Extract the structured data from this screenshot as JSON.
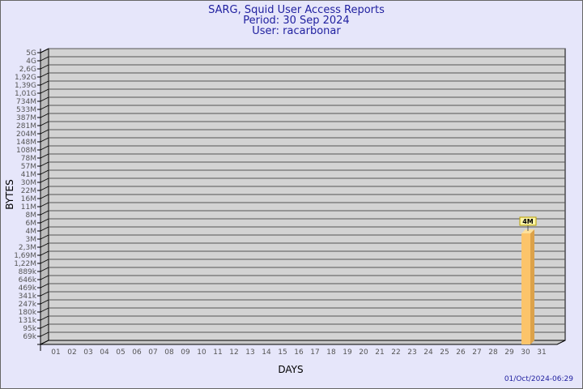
{
  "chart_data": {
    "type": "bar",
    "title": "SARG, Squid User Access Reports",
    "subtitle": [
      "Period: 30 Sep 2024",
      "User: racarbonar"
    ],
    "xlabel": "DAYS",
    "ylabel": "BYTES",
    "y_scale": "log",
    "y_tick_labels": [
      "5G",
      "4G",
      "2,6G",
      "1,92G",
      "1,39G",
      "1,01G",
      "734M",
      "533M",
      "387M",
      "281M",
      "204M",
      "148M",
      "108M",
      "78M",
      "57M",
      "41M",
      "30M",
      "22M",
      "16M",
      "11M",
      "8M",
      "6M",
      "4M",
      "3M",
      "2,3M",
      "1,69M",
      "1,22M",
      "889k",
      "646k",
      "469k",
      "341k",
      "247k",
      "180k",
      "131k",
      "95k",
      "69k"
    ],
    "categories": [
      "01",
      "02",
      "03",
      "04",
      "05",
      "06",
      "07",
      "08",
      "09",
      "10",
      "11",
      "12",
      "13",
      "14",
      "15",
      "16",
      "17",
      "18",
      "19",
      "20",
      "21",
      "22",
      "23",
      "24",
      "25",
      "26",
      "27",
      "28",
      "29",
      "30",
      "31"
    ],
    "series": [
      {
        "values": [
          0,
          0,
          0,
          0,
          0,
          0,
          0,
          0,
          0,
          0,
          0,
          0,
          0,
          0,
          0,
          0,
          0,
          0,
          0,
          0,
          0,
          0,
          0,
          0,
          0,
          0,
          0,
          0,
          0,
          4000000,
          0
        ]
      }
    ],
    "data_labels": {
      "30": "4M"
    },
    "grid": true,
    "colors": {
      "bar": "#fcc46a",
      "bar_side": "#dca24a",
      "bar_top": "#fde09a",
      "wall": "#d3d3d3",
      "label_bg": "#fcf5a8"
    }
  },
  "footer": {
    "timestamp": "01/Oct/2024-06:29"
  }
}
